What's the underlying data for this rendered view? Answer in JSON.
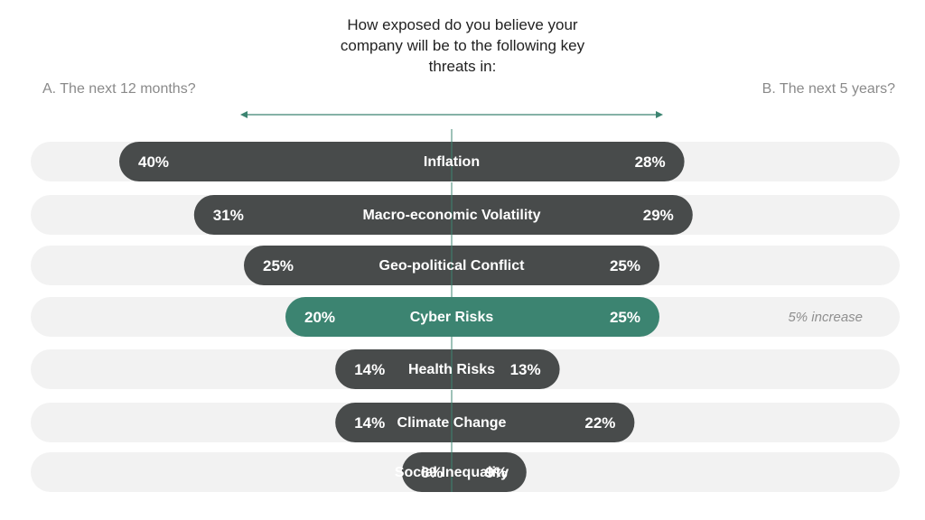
{
  "chart_data": {
    "type": "bar",
    "title_lines": [
      "How exposed do you believe your",
      "company will be to the following key",
      "threats in:"
    ],
    "left_label": "A. The next 12 months?",
    "right_label": "B. The next 5 years?",
    "categories": [
      "Inflation",
      "Macro-economic  Volatility",
      "Geo-political Conflict",
      "Cyber Risks",
      "Health Risks",
      "Climate Change",
      "Social Inequality"
    ],
    "series": [
      {
        "name": "A. The next 12 months?",
        "values": [
          40,
          31,
          25,
          20,
          14,
          14,
          6
        ]
      },
      {
        "name": "B. The next 5 years?",
        "values": [
          28,
          29,
          25,
          25,
          13,
          22,
          9
        ]
      }
    ],
    "value_labels_left": [
      "40%",
      "31%",
      "25%",
      "20%",
      "14%",
      "14%",
      "6%"
    ],
    "value_labels_right": [
      "28%",
      "29%",
      "25%",
      "25%",
      "13%",
      "22%",
      "9%"
    ],
    "highlight_index": 3,
    "annotations": [
      {
        "category": "Cyber Risks",
        "text": "5% increase"
      }
    ]
  },
  "colors": {
    "bar": "#484b4b",
    "highlight": "#3c8471",
    "track": "#f2f2f2",
    "axis": "#3c8471"
  }
}
